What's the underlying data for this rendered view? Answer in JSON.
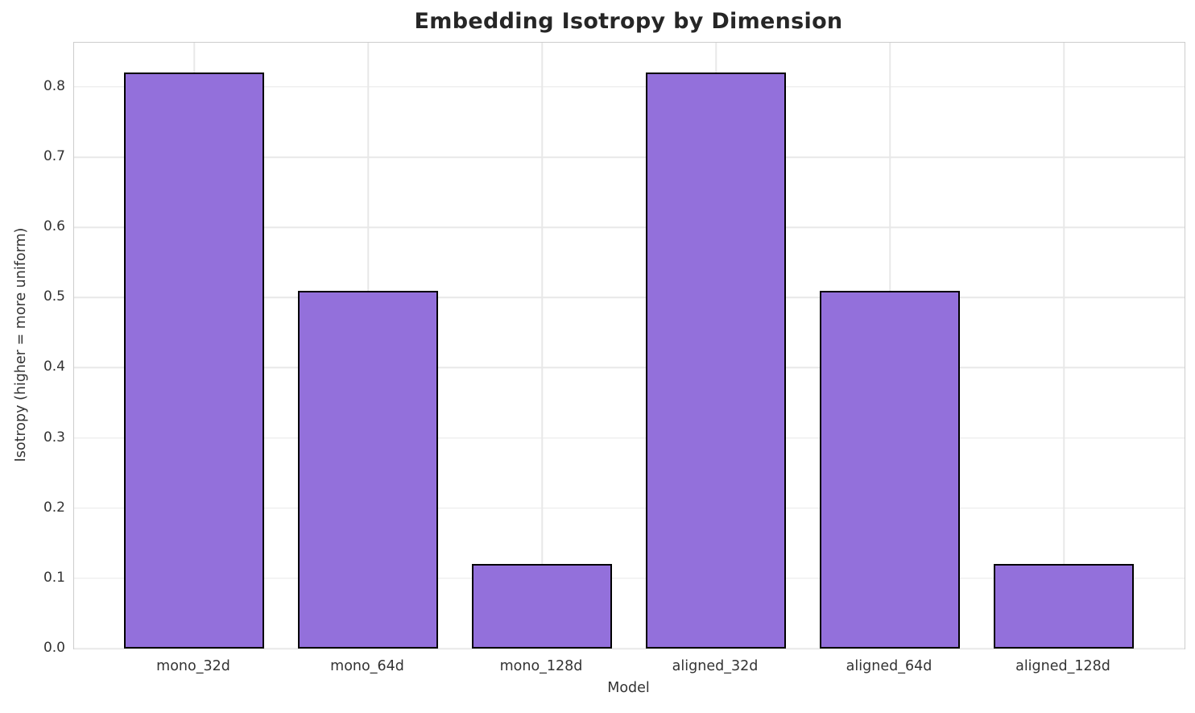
{
  "chart_data": {
    "type": "bar",
    "title": "Embedding Isotropy by Dimension",
    "xlabel": "Model",
    "ylabel": "Isotropy (higher = more uniform)",
    "categories": [
      "mono_32d",
      "mono_64d",
      "mono_128d",
      "aligned_32d",
      "aligned_64d",
      "aligned_128d"
    ],
    "values": [
      0.82,
      0.51,
      0.12,
      0.82,
      0.51,
      0.12
    ],
    "ylim": [
      0,
      0.863
    ],
    "yticks": [
      0.0,
      0.1,
      0.2,
      0.3,
      0.4,
      0.5,
      0.6,
      0.7,
      0.8
    ],
    "grid": "both",
    "legend": "none",
    "colors": {
      "bar_fill": "#9370DB",
      "bar_edge": "#000000",
      "grid": "#e8e8e8",
      "spine": "#cccccc",
      "title_text": "#262626",
      "tick_text": "#333333",
      "background": "#ffffff"
    }
  }
}
